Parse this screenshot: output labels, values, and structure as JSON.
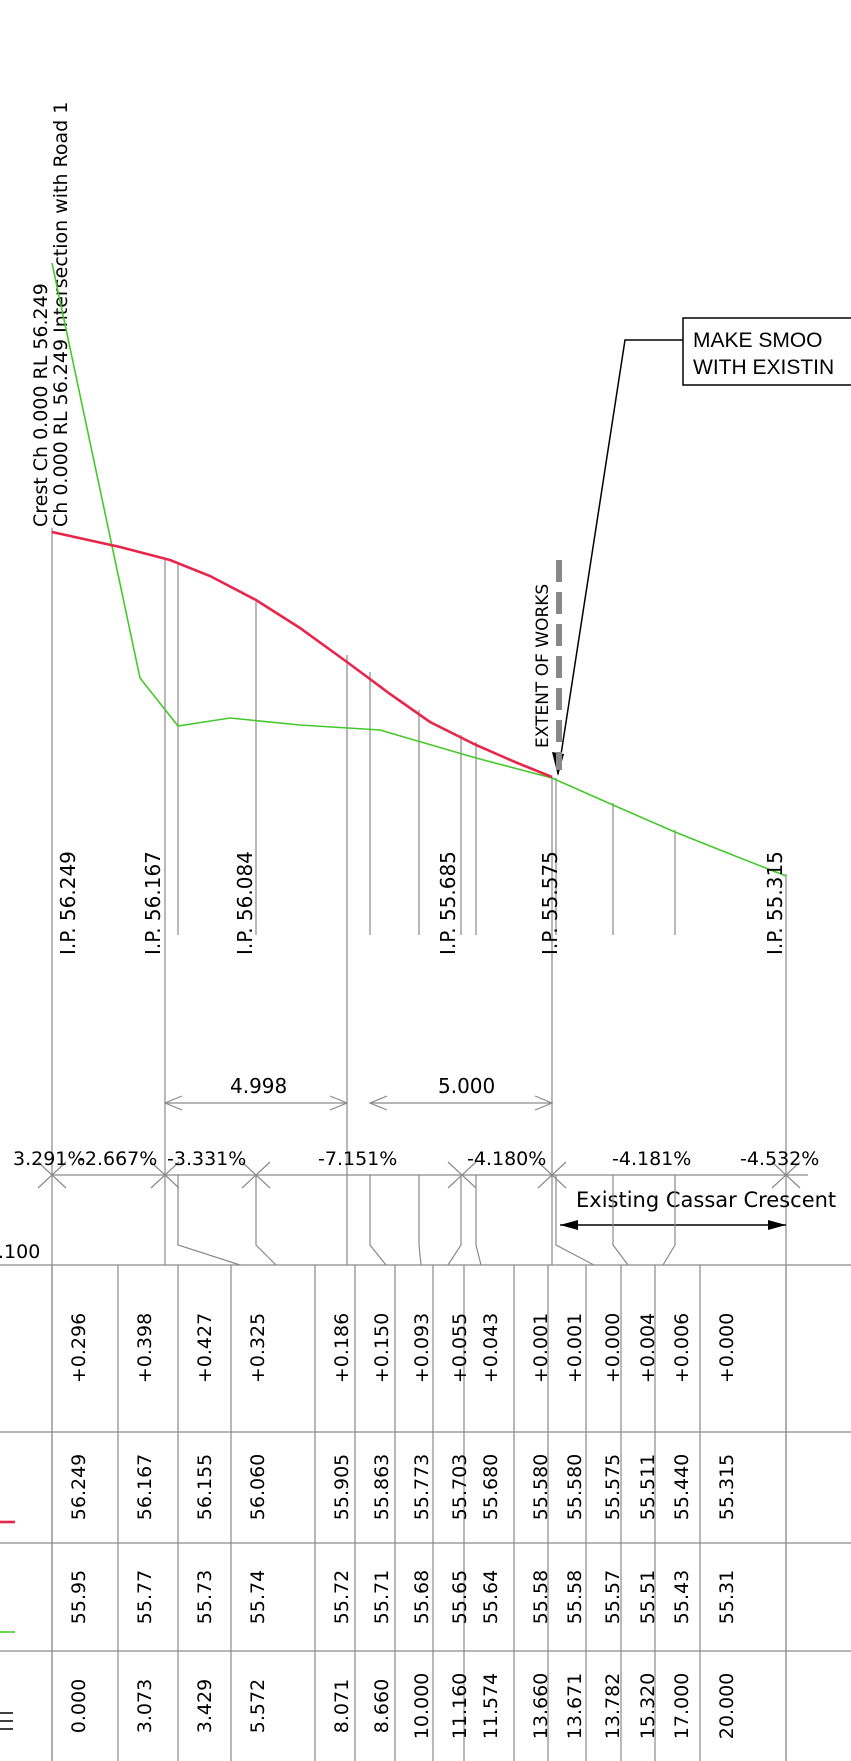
{
  "header": {
    "crest_label": "Crest Ch 0.000 RL 56.249",
    "intersection_label": "Ch 0.000 RL 56.249 Intersection with Road 1"
  },
  "callout": {
    "line1": "MAKE SMOO",
    "line2": "WITH EXISTIN"
  },
  "extent_label": "EXTENT OF WORKS",
  "colors": {
    "design_line": "#e8254a",
    "existing_line": "#44c92a",
    "grid": "#8a8a8a"
  },
  "ip_labels": [
    "I.P. 56.249",
    "I.P. 56.167",
    "I.P. 56.084",
    "I.P. 55.685",
    "I.P. 55.575",
    "I.P. 55.315"
  ],
  "vc_lengths": [
    "4.998",
    "5.000"
  ],
  "grades": [
    "3.291%",
    "-2.667%",
    "-3.331%",
    "-7.151%",
    "-4.180%",
    "-4.181%",
    "-4.532%"
  ],
  "road_label": "Existing Cassar Crescent",
  "datum_fragment": ".100",
  "table": {
    "rows": [
      {
        "chainage": "0.000",
        "existing": "55.95",
        "design": "56.249",
        "depth": "+0.296"
      },
      {
        "chainage": "3.073",
        "existing": "55.77",
        "design": "56.167",
        "depth": "+0.398"
      },
      {
        "chainage": "3.429",
        "existing": "55.73",
        "design": "56.155",
        "depth": "+0.427"
      },
      {
        "chainage": "5.572",
        "existing": "55.74",
        "design": "56.060",
        "depth": "+0.325"
      },
      {
        "chainage": "8.071",
        "existing": "55.72",
        "design": "55.905",
        "depth": "+0.186"
      },
      {
        "chainage": "8.660",
        "existing": "55.71",
        "design": "55.863",
        "depth": "+0.150"
      },
      {
        "chainage": "10.000",
        "existing": "55.68",
        "design": "55.773",
        "depth": "+0.093"
      },
      {
        "chainage": "11.160",
        "existing": "55.65",
        "design": "55.703",
        "depth": "+0.055"
      },
      {
        "chainage": "11.574",
        "existing": "55.64",
        "design": "55.680",
        "depth": "+0.043"
      },
      {
        "chainage": "13.660",
        "existing": "55.58",
        "design": "55.580",
        "depth": "+0.001"
      },
      {
        "chainage": "13.671",
        "existing": "55.58",
        "design": "55.580",
        "depth": "+0.001"
      },
      {
        "chainage": "13.782",
        "existing": "55.57",
        "design": "55.575",
        "depth": "+0.000"
      },
      {
        "chainage": "15.320",
        "existing": "55.51",
        "design": "55.511",
        "depth": "+0.004"
      },
      {
        "chainage": "17.000",
        "existing": "55.43",
        "design": "55.440",
        "depth": "+0.006"
      },
      {
        "chainage": "20.000",
        "existing": "55.31",
        "design": "55.315",
        "depth": "+0.000"
      }
    ]
  }
}
